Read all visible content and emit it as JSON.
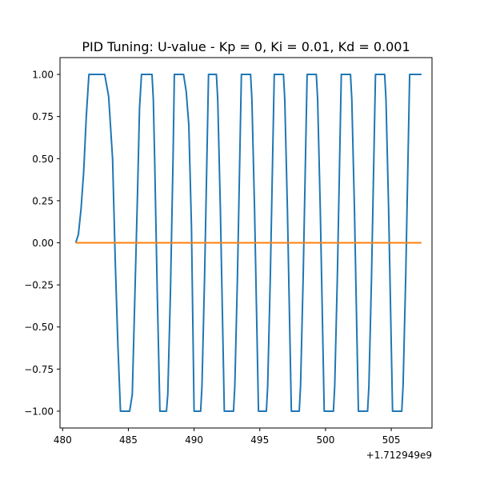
{
  "chart_data": {
    "type": "line",
    "title": "PID Tuning: U-value - Kp = 0, Ki = 0.01, Kd = 0.001",
    "xlabel": "",
    "ylabel": "",
    "x_offset_label": "+1.712949e9",
    "xlim": [
      479.8,
      508.1
    ],
    "ylim": [
      -1.1,
      1.1
    ],
    "x_ticks": [
      480,
      485,
      490,
      495,
      500,
      505
    ],
    "x_tick_labels": [
      "480",
      "485",
      "490",
      "495",
      "500",
      "505"
    ],
    "y_ticks": [
      1.0,
      0.75,
      0.5,
      0.25,
      0.0,
      -0.25,
      -0.5,
      -0.75,
      -1.0
    ],
    "y_tick_labels": [
      "1.00",
      "0.75",
      "0.50",
      "0.25",
      "0.00",
      "−0.25",
      "−0.50",
      "−0.75",
      "−1.00"
    ],
    "grid": false,
    "series": [
      {
        "color": "#1f77b4",
        "x": [
          481.0,
          481.2,
          481.4,
          481.6,
          481.8,
          482.0,
          482.5,
          483.2,
          483.5,
          483.8,
          484.0,
          484.2,
          484.4,
          484.6,
          485.1,
          485.3,
          485.5,
          485.7,
          485.85,
          486.0,
          486.2,
          486.8,
          486.9,
          487.0,
          487.2,
          487.4,
          487.9,
          488.0,
          488.2,
          488.4,
          488.5,
          489.2,
          489.4,
          489.6,
          489.8,
          490.0,
          490.5,
          490.6,
          490.8,
          491.0,
          491.1,
          491.7,
          491.8,
          492.0,
          492.2,
          492.3,
          493.0,
          493.1,
          493.3,
          493.5,
          493.6,
          494.3,
          494.4,
          494.6,
          494.8,
          494.9,
          495.5,
          495.6,
          495.8,
          496.0,
          496.1,
          496.8,
          496.9,
          497.1,
          497.3,
          497.4,
          498.0,
          498.1,
          498.3,
          498.5,
          498.6,
          499.3,
          499.4,
          499.6,
          499.8,
          499.9,
          500.6,
          500.7,
          500.9,
          501.1,
          501.2,
          501.9,
          502.0,
          502.2,
          502.4,
          502.5,
          503.2,
          503.3,
          503.5,
          503.7,
          503.8,
          504.5,
          504.6,
          504.8,
          505.0,
          505.1,
          505.8,
          505.9,
          506.1,
          506.3,
          506.4,
          506.9,
          507.0,
          507.3
        ],
        "y": [
          0.0,
          0.05,
          0.2,
          0.42,
          0.75,
          1.0,
          1.0,
          1.0,
          0.87,
          0.5,
          -0.1,
          -0.6,
          -1.0,
          -1.0,
          -1.0,
          -0.9,
          -0.3,
          0.3,
          0.8,
          1.0,
          1.0,
          1.0,
          0.85,
          0.5,
          -0.3,
          -1.0,
          -1.0,
          -0.9,
          -0.3,
          0.5,
          1.0,
          1.0,
          0.9,
          0.7,
          0.1,
          -1.0,
          -1.0,
          -0.85,
          -0.2,
          0.6,
          1.0,
          1.0,
          0.85,
          0.2,
          -0.6,
          -1.0,
          -1.0,
          -0.85,
          -0.2,
          0.6,
          1.0,
          1.0,
          0.85,
          0.2,
          -0.6,
          -1.0,
          -1.0,
          -0.85,
          -0.2,
          0.6,
          1.0,
          1.0,
          0.85,
          0.2,
          -0.6,
          -1.0,
          -1.0,
          -0.85,
          -0.2,
          0.6,
          1.0,
          1.0,
          0.85,
          0.2,
          -0.6,
          -1.0,
          -1.0,
          -0.85,
          -0.2,
          0.6,
          1.0,
          1.0,
          0.85,
          0.2,
          -0.6,
          -1.0,
          -1.0,
          -0.85,
          -0.2,
          0.6,
          1.0,
          1.0,
          0.85,
          0.2,
          -0.6,
          -1.0,
          -1.0,
          -0.85,
          -0.2,
          0.6,
          1.0,
          1.0,
          1.0,
          1.0
        ]
      },
      {
        "color": "#ff7f0e",
        "x": [
          481.0,
          507.3
        ],
        "y": [
          0.0,
          0.0
        ]
      }
    ]
  }
}
